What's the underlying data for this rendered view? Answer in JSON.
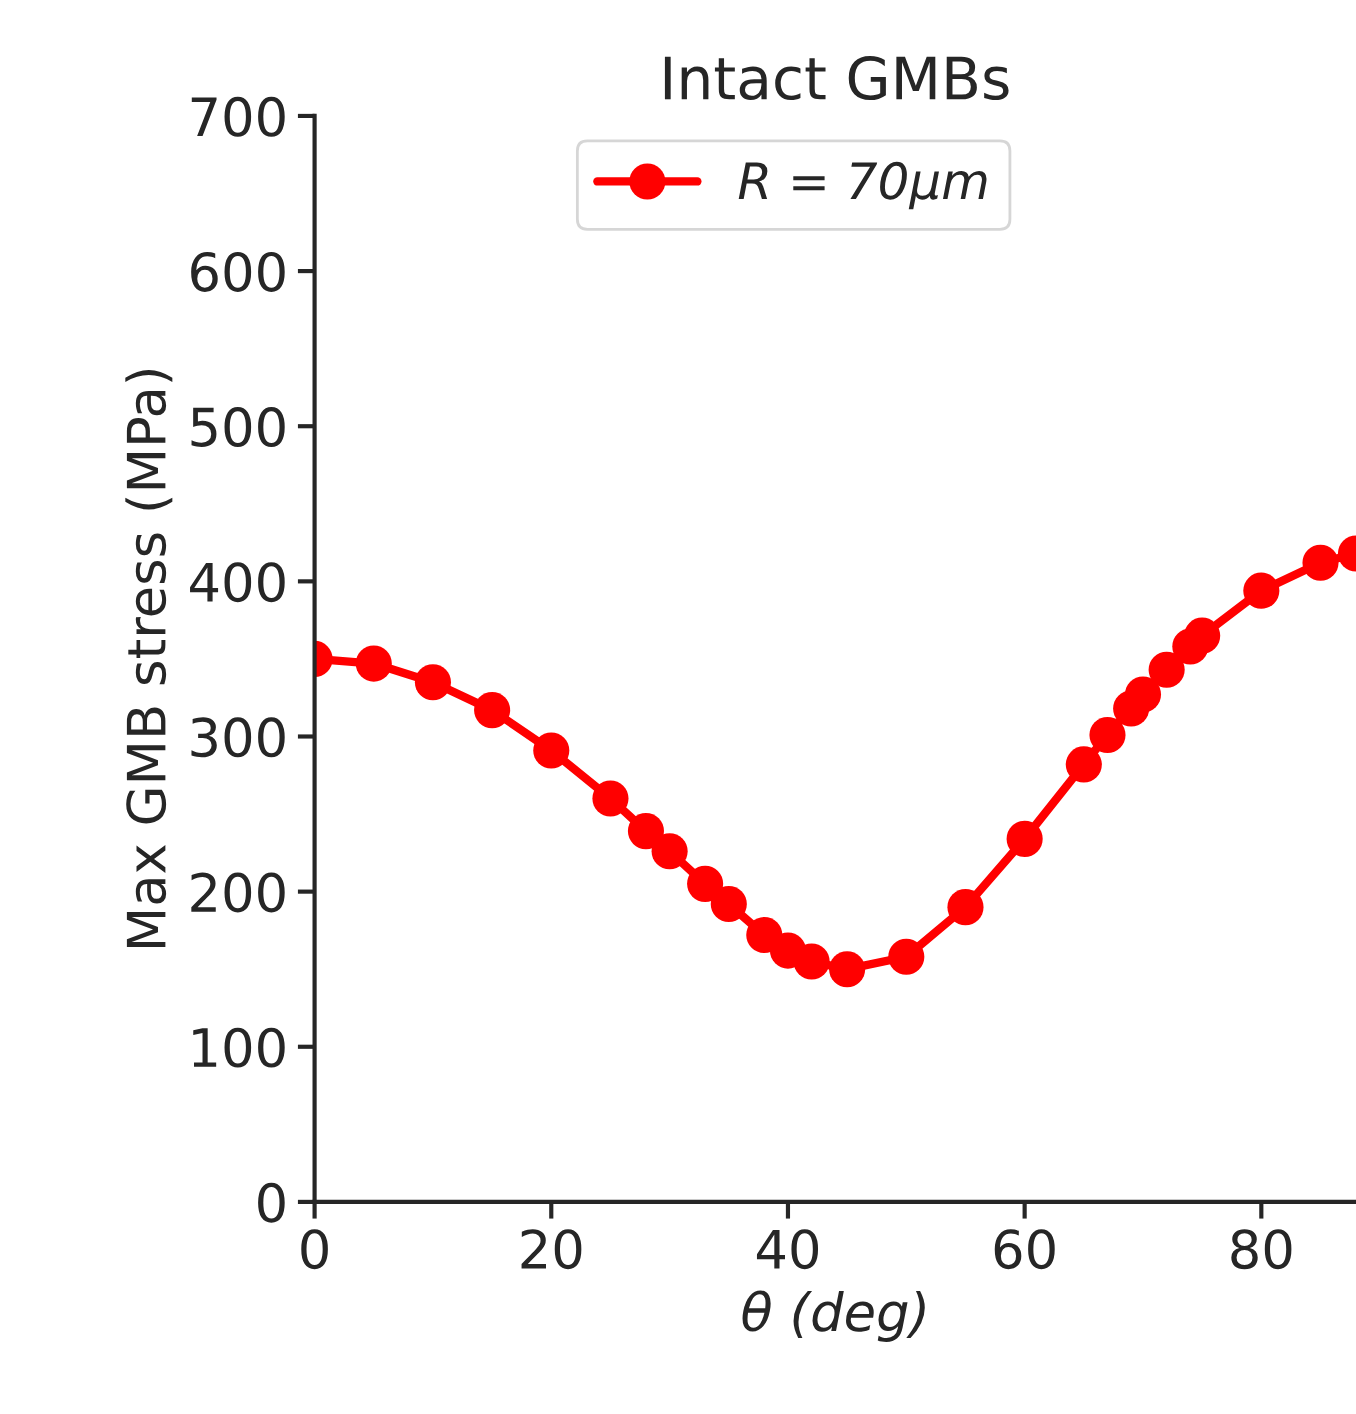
{
  "chart_data": {
    "type": "line",
    "title": "Intact GMBs",
    "xlabel": "θ (deg)",
    "ylabel": "Max GMB stress (MPa)",
    "x": [
      0,
      5,
      10,
      15,
      20,
      25,
      28,
      30,
      33,
      35,
      38,
      40,
      42,
      45,
      50,
      55,
      60,
      65,
      67,
      69,
      70,
      72,
      74,
      75,
      80,
      85,
      88
    ],
    "series": [
      {
        "name": "R = 70μm",
        "color": "#ff0000",
        "values": [
          350,
          347,
          335,
          317,
          291,
          260,
          239,
          226,
          205,
          192,
          172,
          162,
          155,
          150,
          158,
          190,
          234,
          282,
          301,
          318,
          327,
          343,
          358,
          365,
          394,
          412,
          418
        ]
      }
    ],
    "xlim": [
      0,
      88
    ],
    "xticks": [
      0,
      20,
      40,
      60,
      80
    ],
    "ylim": [
      0,
      700
    ],
    "yticks": [
      0,
      100,
      200,
      300,
      400,
      500,
      600,
      700
    ],
    "marker": "circle",
    "line_style": "solid",
    "legend": "top",
    "grid": false
  }
}
